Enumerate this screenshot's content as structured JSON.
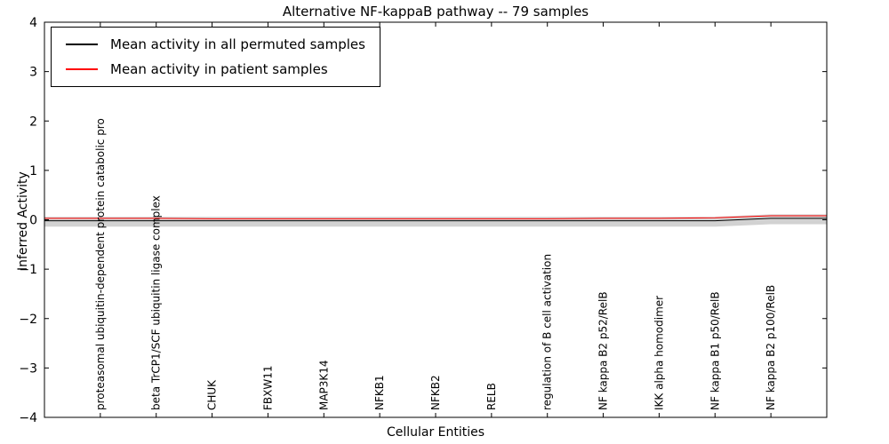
{
  "chart_data": {
    "type": "line",
    "title": "Alternative NF-kappaB pathway -- 79 samples",
    "xlabel": "Cellular Entities",
    "ylabel": "Inferred Activity",
    "ylim": [
      -4,
      4
    ],
    "ytick_values": [
      4,
      3,
      2,
      1,
      0,
      -1,
      -2,
      -3,
      -4
    ],
    "ytick_labels": [
      "4",
      "3",
      "2",
      "1",
      "0",
      "−1",
      "−2",
      "−3",
      "−4"
    ],
    "grid": false,
    "legend_position": "upper left",
    "categories": [
      "proteasomal ubiquitin-dependent protein catabolic pro",
      "beta TrCP1/SCF ubiquitin ligase complex",
      "CHUK",
      "FBXW11",
      "MAP3K14",
      "NFKB1",
      "NFKB2",
      "RELB",
      "regulation of B cell activation",
      "NF kappa B2 p52/RelB",
      "IKK alpha homodimer",
      "NF kappa B1 p50/RelB",
      "NF kappa B2 p100/RelB"
    ],
    "series": [
      {
        "name": "Mean activity in all permuted samples",
        "color": "#000000",
        "values": [
          -0.02,
          -0.02,
          -0.02,
          -0.02,
          -0.02,
          -0.02,
          -0.02,
          -0.02,
          -0.02,
          -0.02,
          -0.02,
          -0.02,
          0.03
        ]
      },
      {
        "name": "Mean activity in patient samples",
        "color": "#ff0000",
        "values": [
          0.03,
          0.03,
          0.02,
          0.02,
          0.02,
          0.02,
          0.02,
          0.02,
          0.02,
          0.03,
          0.03,
          0.04,
          0.08
        ]
      }
    ],
    "permutation_band": {
      "color": "#d2d2d2",
      "upper_offset": 0.08,
      "lower_offset": 0.12
    },
    "legend": [
      {
        "label": "Mean activity in all permuted samples",
        "color": "#000000"
      },
      {
        "label": "Mean activity in patient samples",
        "color": "#ff0000"
      }
    ]
  }
}
